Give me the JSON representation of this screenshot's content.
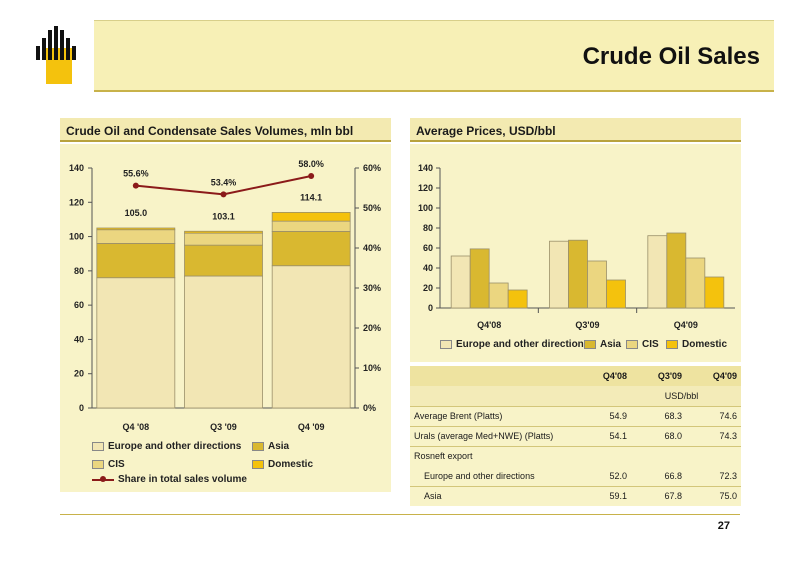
{
  "page": {
    "title": "Crude Oil Sales",
    "page_number": "27"
  },
  "left_panel": {
    "title": "Crude Oil and Condensate Sales Volumes, mln bbl"
  },
  "right_panel": {
    "title": "Average Prices, USD/bbl"
  },
  "colors": {
    "europe": "#f2e6b4",
    "asia": "#d9b830",
    "cis": "#ebd680",
    "domestic": "#f4c20d",
    "share_line": "#8b1a1a",
    "panel_bg": "#f8f3c8"
  },
  "chart_data": [
    {
      "type": "bar",
      "stacked": true,
      "categories": [
        "Q4 '08",
        "Q3 '09",
        "Q4 '09"
      ],
      "series": [
        {
          "name": "Europe and other directions",
          "values": [
            76,
            77,
            83
          ]
        },
        {
          "name": "Asia",
          "values": [
            20,
            18,
            20
          ]
        },
        {
          "name": "CIS",
          "values": [
            8,
            7,
            6
          ]
        },
        {
          "name": "Domestic",
          "values": [
            1,
            1.1,
            5.1
          ]
        }
      ],
      "totals": [
        "105.0",
        "103.1",
        "114.1"
      ],
      "ylim": [
        0,
        140
      ],
      "yticks": [
        "0",
        "20",
        "40",
        "60",
        "80",
        "100",
        "120",
        "140"
      ],
      "secondary": {
        "name": "Share in total sales volume",
        "type": "line",
        "values": [
          55.6,
          53.4,
          58.0
        ],
        "labels": [
          "55.6%",
          "53.4%",
          "58.0%"
        ],
        "ylim": [
          0,
          60
        ],
        "yticks": [
          "0%",
          "10%",
          "20%",
          "30%",
          "40%",
          "50%",
          "60%"
        ]
      },
      "legend_position": "bottom"
    },
    {
      "type": "bar",
      "categories": [
        "Q4'08",
        "Q3'09",
        "Q4'09"
      ],
      "series": [
        {
          "name": "Europe and other directions",
          "values": [
            52.0,
            66.8,
            72.3
          ]
        },
        {
          "name": "Asia",
          "values": [
            59.1,
            67.8,
            75.0
          ]
        },
        {
          "name": "CIS",
          "values": [
            25,
            47,
            50
          ]
        },
        {
          "name": "Domestic",
          "values": [
            18,
            28,
            31
          ]
        }
      ],
      "ylim": [
        0,
        140
      ],
      "yticks": [
        "0",
        "20",
        "40",
        "60",
        "80",
        "100",
        "120",
        "140"
      ],
      "legend_position": "bottom"
    }
  ],
  "price_table": {
    "columns": [
      "Q4'08",
      "Q3'09",
      "Q4'09"
    ],
    "unit": "USD/bbl",
    "rows": [
      {
        "label": "Average Brent  (Platts)",
        "values": [
          "54.9",
          "68.3",
          "74.6"
        ]
      },
      {
        "label": "Urals (average Med+NWE) (Platts)",
        "values": [
          "54.1",
          "68.0",
          "74.3"
        ]
      },
      {
        "label": "Rosneft export",
        "values": [
          "",
          "",
          ""
        ]
      },
      {
        "label": "Europe and other directions",
        "values": [
          "52.0",
          "66.8",
          "72.3"
        ]
      },
      {
        "label": "Asia",
        "values": [
          "59.1",
          "67.8",
          "75.0"
        ]
      }
    ]
  }
}
